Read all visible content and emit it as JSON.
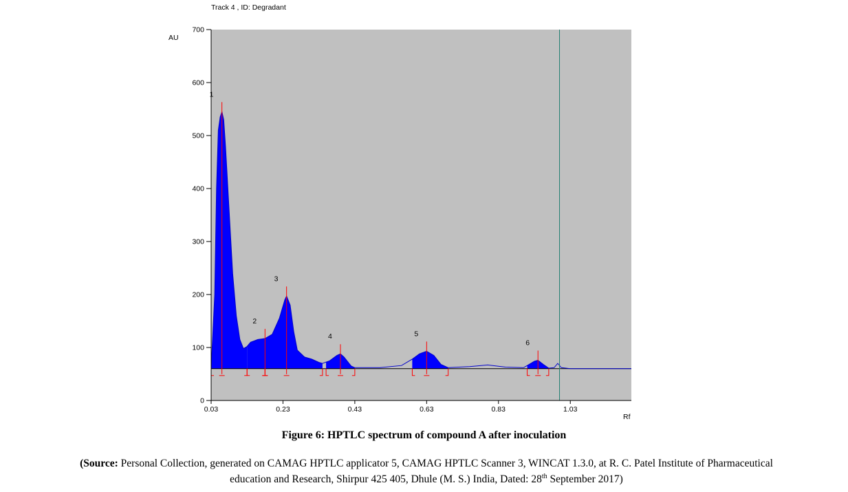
{
  "chart_data": {
    "type": "area",
    "title": "Track  4 , ID: Degradant",
    "ylabel": "AU",
    "xlabel": "Rf",
    "xlim": [
      0.03,
      1.2
    ],
    "ylim": [
      0,
      700
    ],
    "x_ticks": [
      "0.03",
      "0.23",
      "0.43",
      "0.63",
      "0.83",
      "1.03"
    ],
    "x_tick_values": [
      0.03,
      0.23,
      0.43,
      0.63,
      0.83,
      1.03
    ],
    "y_ticks": [
      "0",
      "100",
      "200",
      "300",
      "400",
      "500",
      "600",
      "700"
    ],
    "y_tick_values": [
      0,
      100,
      200,
      300,
      400,
      500,
      600,
      700
    ],
    "baseline": 60,
    "vertical_marker": 1.0,
    "plot_background": "#c0c0c0",
    "fill_color": "#0000ff",
    "line_color": "#0000cc",
    "marker_color": "#ff0000",
    "signal": [
      [
        0.03,
        62
      ],
      [
        0.04,
        200
      ],
      [
        0.045,
        400
      ],
      [
        0.05,
        510
      ],
      [
        0.055,
        535
      ],
      [
        0.06,
        545
      ],
      [
        0.065,
        530
      ],
      [
        0.07,
        480
      ],
      [
        0.08,
        360
      ],
      [
        0.09,
        240
      ],
      [
        0.1,
        160
      ],
      [
        0.11,
        115
      ],
      [
        0.12,
        98
      ],
      [
        0.13,
        102
      ],
      [
        0.14,
        110
      ],
      [
        0.16,
        115
      ],
      [
        0.18,
        117
      ],
      [
        0.2,
        125
      ],
      [
        0.22,
        155
      ],
      [
        0.235,
        190
      ],
      [
        0.24,
        197
      ],
      [
        0.25,
        180
      ],
      [
        0.26,
        130
      ],
      [
        0.27,
        95
      ],
      [
        0.29,
        82
      ],
      [
        0.31,
        78
      ],
      [
        0.33,
        72
      ],
      [
        0.34,
        70
      ],
      [
        0.36,
        75
      ],
      [
        0.38,
        85
      ],
      [
        0.39,
        88
      ],
      [
        0.4,
        82
      ],
      [
        0.42,
        65
      ],
      [
        0.43,
        62
      ],
      [
        0.5,
        62
      ],
      [
        0.56,
        66
      ],
      [
        0.59,
        78
      ],
      [
        0.61,
        88
      ],
      [
        0.63,
        93
      ],
      [
        0.65,
        85
      ],
      [
        0.67,
        68
      ],
      [
        0.69,
        62
      ],
      [
        0.75,
        64
      ],
      [
        0.8,
        67
      ],
      [
        0.85,
        63
      ],
      [
        0.9,
        62
      ],
      [
        0.91,
        66
      ],
      [
        0.93,
        74
      ],
      [
        0.94,
        76
      ],
      [
        0.955,
        68
      ],
      [
        0.97,
        61
      ],
      [
        0.985,
        62
      ],
      [
        0.995,
        70
      ],
      [
        1.005,
        62
      ],
      [
        1.03,
        60
      ],
      [
        1.2,
        60
      ]
    ],
    "peaks": [
      {
        "label": "1",
        "start": 0.03,
        "max_x": 0.06,
        "max_y": 545,
        "end": 0.13
      },
      {
        "label": "2",
        "start": 0.13,
        "max_x": 0.18,
        "max_y": 117,
        "end": 0.18
      },
      {
        "label": "3",
        "start": 0.18,
        "max_x": 0.24,
        "max_y": 197,
        "end": 0.34
      },
      {
        "label": "4",
        "start": 0.35,
        "max_x": 0.39,
        "max_y": 88,
        "end": 0.43
      },
      {
        "label": "5",
        "start": 0.59,
        "max_x": 0.63,
        "max_y": 93,
        "end": 0.69
      },
      {
        "label": "6",
        "start": 0.91,
        "max_x": 0.94,
        "max_y": 76,
        "end": 0.97
      }
    ]
  },
  "caption": "Figure 6: HPTLC spectrum of compound A after inoculation",
  "source": {
    "bold_prefix": "(Source:",
    "line1_rest": " Personal Collection, generated on CAMAG HPTLC applicator 5, CAMAG HPTLC Scanner 3, WINCAT 1.3.0, at R. C. Patel Institute of Pharmaceutical",
    "line2_main": "education and Research, Shirpur 425 405, Dhule (M. S.) India, Dated: 28",
    "line2_sup": "th",
    "line2_end": " September 2017)"
  }
}
